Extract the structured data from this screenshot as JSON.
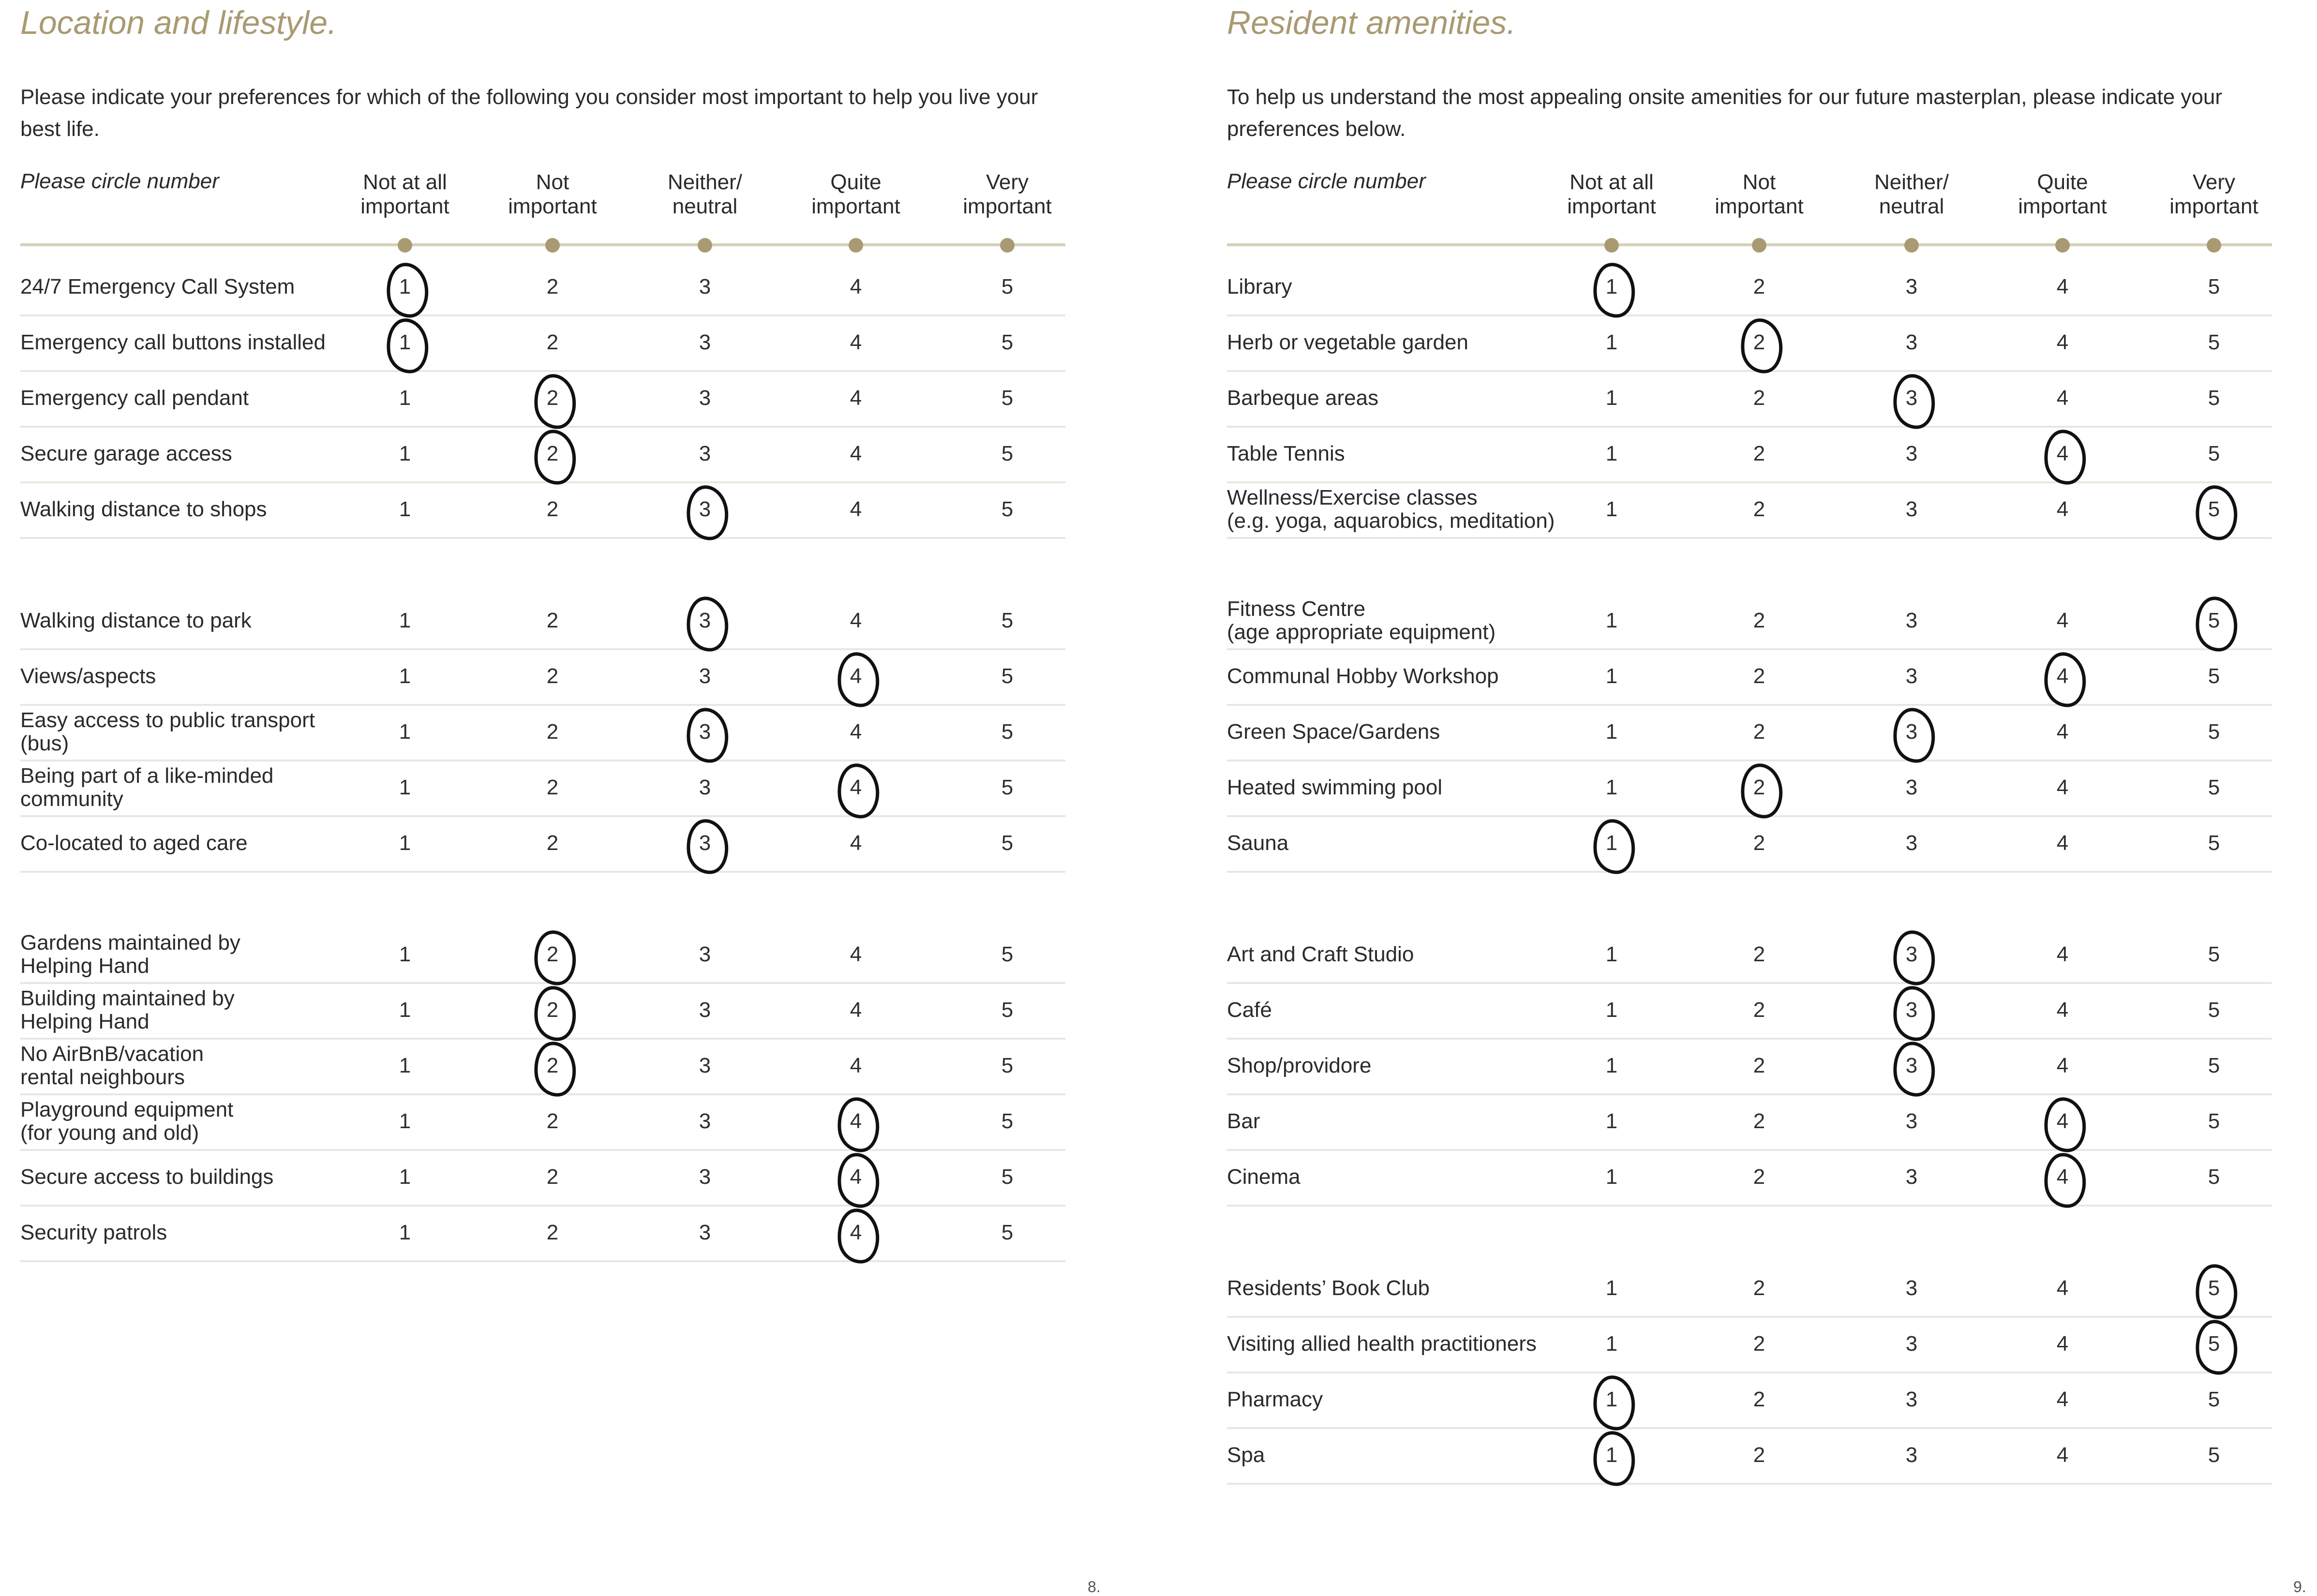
{
  "left_page": {
    "title": "Location and lifestyle.",
    "intro": "Please indicate your preferences for which of the following you consider most important to help you live your best life.",
    "circle_label": "Please circle number",
    "columns": [
      "Not at all\nimportant",
      "Not\nimportant",
      "Neither/\nneutral",
      "Quite\nimportant",
      "Very\nimportant"
    ],
    "groups": [
      [
        {
          "label": "24/7 Emergency Call System",
          "selected": 1
        },
        {
          "label": "Emergency call buttons installed",
          "selected": 1
        },
        {
          "label": "Emergency call pendant",
          "selected": 2
        },
        {
          "label": "Secure garage access",
          "selected": 2
        },
        {
          "label": "Walking distance to shops",
          "selected": 3
        }
      ],
      [
        {
          "label": "Walking distance to park",
          "selected": 3
        },
        {
          "label": "Views/aspects",
          "selected": 4
        },
        {
          "label": "Easy access to public transport\n(bus)",
          "selected": 3
        },
        {
          "label": "Being part of a like-minded\ncommunity",
          "selected": 4
        },
        {
          "label": "Co-located to aged care",
          "selected": 3
        }
      ],
      [
        {
          "label": "Gardens maintained by\nHelping Hand",
          "selected": 2
        },
        {
          "label": "Building maintained by\nHelping Hand",
          "selected": 2
        },
        {
          "label": "No AirBnB/vacation\nrental neighbours",
          "selected": 2
        },
        {
          "label": "Playground equipment\n(for young and old)",
          "selected": 4
        },
        {
          "label": "Secure access to buildings",
          "selected": 4
        },
        {
          "label": "Security patrols",
          "selected": 4
        }
      ]
    ],
    "page_number": "8."
  },
  "right_page": {
    "title": "Resident amenities.",
    "intro": "To help us understand the most appealing onsite amenities for our future masterplan, please indicate your preferences below.",
    "circle_label": "Please circle number",
    "columns": [
      "Not at all\nimportant",
      "Not\nimportant",
      "Neither/\nneutral",
      "Quite\nimportant",
      "Very\nimportant"
    ],
    "groups": [
      [
        {
          "label": "Library",
          "selected": 1
        },
        {
          "label": "Herb or vegetable garden",
          "selected": 2
        },
        {
          "label": "Barbeque areas",
          "selected": 3
        },
        {
          "label": "Table Tennis",
          "selected": 4
        },
        {
          "label": "Wellness/Exercise classes\n(e.g. yoga, aquarobics, meditation)",
          "selected": 5
        }
      ],
      [
        {
          "label": "Fitness Centre\n(age appropriate equipment)",
          "selected": 5
        },
        {
          "label": "Communal Hobby Workshop",
          "selected": 4
        },
        {
          "label": "Green Space/Gardens",
          "selected": 3
        },
        {
          "label": "Heated swimming pool",
          "selected": 2
        },
        {
          "label": "Sauna",
          "selected": 1
        }
      ],
      [
        {
          "label": "Art and Craft Studio",
          "selected": 3
        },
        {
          "label": "Café",
          "selected": 3
        },
        {
          "label": "Shop/providore",
          "selected": 3
        },
        {
          "label": "Bar",
          "selected": 4
        },
        {
          "label": "Cinema",
          "selected": 4
        }
      ],
      [
        {
          "label": "Residents’ Book Club",
          "selected": 5
        },
        {
          "label": "Visiting allied health practitioners",
          "selected": 5
        },
        {
          "label": "Pharmacy",
          "selected": 1
        },
        {
          "label": "Spa",
          "selected": 1
        }
      ]
    ],
    "page_number": "9."
  },
  "scale_values": [
    "1",
    "2",
    "3",
    "4",
    "5"
  ]
}
